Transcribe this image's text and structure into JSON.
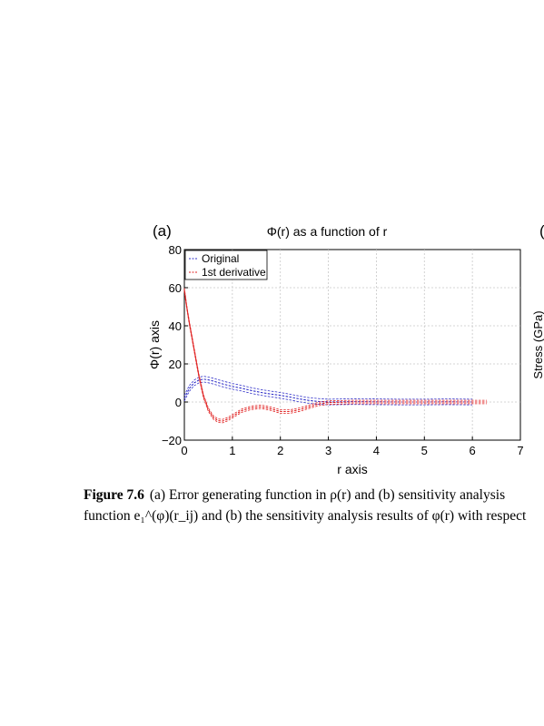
{
  "panel_a_label": "(a)",
  "panel_b_label_fragment": "(",
  "right_panel_ylabel_fragment": "Stress (GPa)",
  "caption": {
    "figure_number": "Figure 7.6",
    "line1": "(a) Error generating function in ρ(r) and (b) sensitivity analysis",
    "line2": "function e₁^(φ)(r_ij) and (b) the sensitivity analysis results of φ(r) with respect"
  },
  "chart_data": {
    "type": "line",
    "title": "Φ(r) as a function of r",
    "xlabel": "r axis",
    "ylabel": "Φ(r) axis",
    "xlim": [
      0,
      7
    ],
    "ylim": [
      -20,
      80
    ],
    "xticks": [
      0,
      1,
      2,
      3,
      4,
      5,
      6,
      7
    ],
    "yticks": [
      -20,
      0,
      20,
      40,
      60,
      80
    ],
    "grid": true,
    "legend_position": "top-left",
    "series": [
      {
        "name": "Original",
        "color": "#3030c8",
        "style": "dashed",
        "x": [
          0,
          0.1,
          0.2,
          0.3,
          0.4,
          0.5,
          0.6,
          0.8,
          1.0,
          1.2,
          1.4,
          1.6,
          1.8,
          2.0,
          2.2,
          2.4,
          2.6,
          2.8,
          3.0,
          3.5,
          4.0,
          4.5,
          5.0,
          5.5,
          6.0
        ],
        "y": [
          2,
          7,
          10,
          11.5,
          12,
          11.6,
          11,
          9.5,
          8.2,
          7.2,
          6,
          5,
          4.2,
          3.5,
          2.6,
          1.6,
          0.8,
          0.3,
          0,
          0.2,
          0.1,
          0,
          0,
          0.1,
          0
        ],
        "band": 1.5
      },
      {
        "name": "1st derivative",
        "color": "#e02020",
        "style": "dashed",
        "x": [
          0,
          0.05,
          0.1,
          0.2,
          0.3,
          0.4,
          0.5,
          0.6,
          0.7,
          0.8,
          0.9,
          1.0,
          1.2,
          1.4,
          1.6,
          1.8,
          2.0,
          2.2,
          2.4,
          2.6,
          2.8,
          3.0,
          3.5,
          4.0,
          5.0,
          6.0,
          6.3
        ],
        "y": [
          59,
          50,
          42,
          28,
          14,
          3,
          -4,
          -8,
          -9.8,
          -10,
          -9,
          -7.5,
          -4.5,
          -3,
          -2.5,
          -3.5,
          -5,
          -5,
          -4,
          -2.5,
          -1,
          -0.3,
          0,
          0,
          0,
          0,
          0
        ],
        "band": 0.9
      }
    ]
  }
}
